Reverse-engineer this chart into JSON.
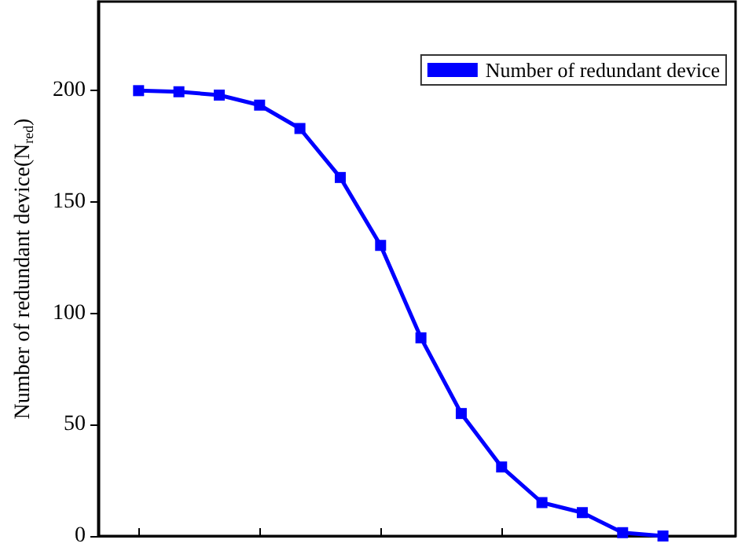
{
  "chart_data": {
    "type": "line",
    "ylabel": "Number of redundant device(N$_{red}$)",
    "categories": [
      null,
      null,
      null,
      null,
      null,
      null,
      null,
      null,
      null,
      null,
      null,
      null,
      null,
      null
    ],
    "series": [
      {
        "name": "Number of redundant device",
        "color": "#0000ff",
        "values": [
          200,
          199.5,
          198,
          193.5,
          183,
          161,
          130.5,
          89,
          55,
          31,
          15,
          10.5,
          1.5,
          0
        ]
      }
    ],
    "ylim": [
      0,
      240
    ],
    "yticks": [
      0,
      50,
      100,
      150,
      200
    ],
    "grid": false,
    "legend": "top right",
    "marker": "square"
  }
}
